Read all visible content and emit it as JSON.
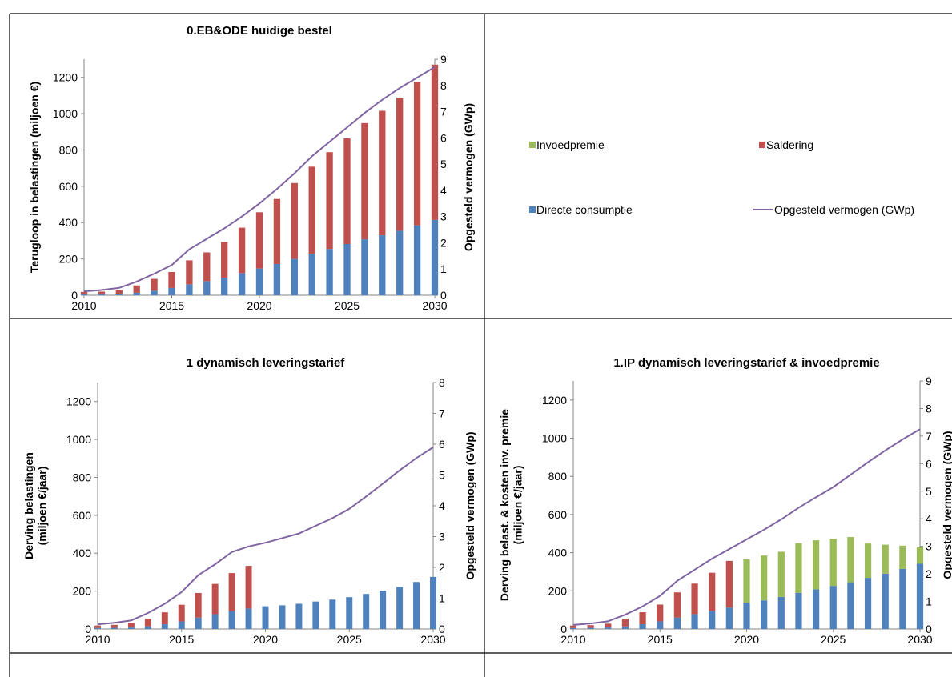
{
  "colors": {
    "directe": "#4F81BD",
    "saldering": "#C0504D",
    "invoed": "#9BBB59",
    "line": "#8064A2",
    "axis": "#868686",
    "border": "#000000"
  },
  "legend": {
    "items": [
      {
        "key": "invoed",
        "label": "Invoedpremie",
        "kind": "bar"
      },
      {
        "key": "saldering",
        "label": "Saldering",
        "kind": "bar"
      },
      {
        "key": "directe",
        "label": "Directe consumptie",
        "kind": "bar"
      },
      {
        "key": "line",
        "label": "Opgesteld vermogen (GWp)",
        "kind": "line"
      }
    ]
  },
  "chart_data": [
    {
      "type": "bar",
      "stacked": true,
      "title": "0.EB&ODE huidige bestel",
      "ylabel": "Terugloop in belastingen (miljoen €)",
      "y2label": "Opgesteld vermogen (GWp)",
      "ylim": [
        0,
        1300
      ],
      "yticks": [
        0,
        200,
        400,
        600,
        800,
        1000,
        1200
      ],
      "y2lim": [
        0,
        9
      ],
      "y2ticks": [
        0,
        1,
        2,
        3,
        4,
        5,
        6,
        7,
        8,
        9
      ],
      "xlim": [
        2010,
        2030
      ],
      "xticks": [
        "2010",
        "2015",
        "2020",
        "2025",
        "2030"
      ],
      "x": [
        2010,
        2011,
        2012,
        2013,
        2014,
        2015,
        2016,
        2017,
        2018,
        2019,
        2020,
        2021,
        2022,
        2023,
        2024,
        2025,
        2026,
        2027,
        2028,
        2029,
        2030
      ],
      "series": [
        {
          "name": "Directe consumptie",
          "values": [
            5,
            6,
            8,
            14,
            25,
            40,
            60,
            78,
            97,
            122,
            147,
            172,
            200,
            228,
            255,
            282,
            308,
            330,
            355,
            385,
            415
          ]
        },
        {
          "name": "Saldering",
          "values": [
            13,
            14,
            20,
            40,
            65,
            88,
            132,
            158,
            196,
            250,
            310,
            358,
            418,
            480,
            533,
            582,
            640,
            686,
            733,
            790,
            855
          ]
        },
        {
          "name": "Invoedpremie",
          "values": [
            0,
            0,
            0,
            0,
            0,
            0,
            0,
            0,
            0,
            0,
            0,
            0,
            0,
            0,
            0,
            0,
            0,
            0,
            0,
            0,
            0
          ]
        }
      ],
      "line": {
        "name": "Opgesteld vermogen (GWp)",
        "values": [
          0.15,
          0.2,
          0.28,
          0.52,
          0.82,
          1.15,
          1.75,
          2.15,
          2.55,
          3.0,
          3.5,
          4.05,
          4.65,
          5.3,
          5.85,
          6.4,
          6.95,
          7.45,
          7.9,
          8.3,
          8.7
        ]
      }
    },
    {
      "type": "bar",
      "stacked": true,
      "title": "1 dynamisch leveringstarief",
      "ylabel": "Derving belastingen (miljoen €/jaar)",
      "y2label": "Opgesteld vermogen (GWp)",
      "ylim": [
        0,
        1300
      ],
      "yticks": [
        0,
        200,
        400,
        600,
        800,
        1000,
        1200
      ],
      "y2lim": [
        0,
        8
      ],
      "y2ticks": [
        0,
        1,
        2,
        3,
        4,
        5,
        6,
        7,
        8
      ],
      "xlim": [
        2010,
        2030
      ],
      "xticks": [
        "2010",
        "2015",
        "2020",
        "2025",
        "2030"
      ],
      "x": [
        2010,
        2011,
        2012,
        2013,
        2014,
        2015,
        2016,
        2017,
        2018,
        2019,
        2020,
        2021,
        2022,
        2023,
        2024,
        2025,
        2026,
        2027,
        2028,
        2029,
        2030
      ],
      "series": [
        {
          "name": "Directe consumptie",
          "values": [
            5,
            6,
            8,
            14,
            25,
            40,
            60,
            78,
            95,
            108,
            120,
            125,
            133,
            145,
            155,
            168,
            185,
            202,
            222,
            248,
            275
          ]
        },
        {
          "name": "Saldering",
          "values": [
            13,
            16,
            22,
            41,
            63,
            88,
            130,
            160,
            200,
            225,
            0,
            0,
            0,
            0,
            0,
            0,
            0,
            0,
            0,
            0,
            0
          ]
        },
        {
          "name": "Invoedpremie",
          "values": [
            0,
            0,
            0,
            0,
            0,
            0,
            0,
            0,
            0,
            0,
            0,
            0,
            0,
            0,
            0,
            0,
            0,
            0,
            0,
            0,
            0
          ]
        }
      ],
      "line": {
        "name": "Opgesteld vermogen (GWp)",
        "values": [
          0.15,
          0.2,
          0.28,
          0.52,
          0.82,
          1.2,
          1.75,
          2.1,
          2.5,
          2.68,
          2.8,
          2.95,
          3.1,
          3.35,
          3.6,
          3.9,
          4.3,
          4.72,
          5.15,
          5.55,
          5.9
        ]
      }
    },
    {
      "type": "bar",
      "stacked": true,
      "title": "1.IP dynamisch leveringstarief & invoedpremie",
      "ylabel": "Derving belast. & kosten inv. premie (miljoen €/jaar)",
      "y2label": "Opgesteld vermogen (GWp)",
      "ylim": [
        0,
        1300
      ],
      "yticks": [
        0,
        200,
        400,
        600,
        800,
        1000,
        1200
      ],
      "y2lim": [
        0,
        9
      ],
      "y2ticks": [
        0,
        1,
        2,
        3,
        4,
        5,
        6,
        7,
        8,
        9
      ],
      "xlim": [
        2010,
        2030
      ],
      "xticks": [
        "2010",
        "2015",
        "2020",
        "2025",
        "2030"
      ],
      "x": [
        2010,
        2011,
        2012,
        2013,
        2014,
        2015,
        2016,
        2017,
        2018,
        2019,
        2020,
        2021,
        2022,
        2023,
        2024,
        2025,
        2026,
        2027,
        2028,
        2029,
        2030
      ],
      "series": [
        {
          "name": "Directe consumptie",
          "values": [
            5,
            6,
            8,
            14,
            25,
            40,
            60,
            78,
            95,
            112,
            135,
            150,
            168,
            190,
            208,
            226,
            245,
            268,
            290,
            315,
            342
          ]
        },
        {
          "name": "Saldering",
          "values": [
            13,
            14,
            20,
            40,
            63,
            88,
            132,
            160,
            200,
            245,
            0,
            0,
            0,
            0,
            0,
            0,
            0,
            0,
            0,
            0,
            0
          ]
        },
        {
          "name": "Invoedpremie",
          "values": [
            0,
            0,
            0,
            0,
            0,
            0,
            0,
            0,
            0,
            0,
            230,
            235,
            237,
            260,
            257,
            247,
            237,
            180,
            152,
            122,
            88
          ]
        }
      ],
      "line": {
        "name": "Opgesteld vermogen (GWp)",
        "values": [
          0.15,
          0.2,
          0.28,
          0.52,
          0.82,
          1.2,
          1.75,
          2.15,
          2.55,
          2.9,
          3.25,
          3.6,
          3.98,
          4.4,
          4.78,
          5.15,
          5.6,
          6.05,
          6.48,
          6.88,
          7.25
        ]
      }
    }
  ]
}
